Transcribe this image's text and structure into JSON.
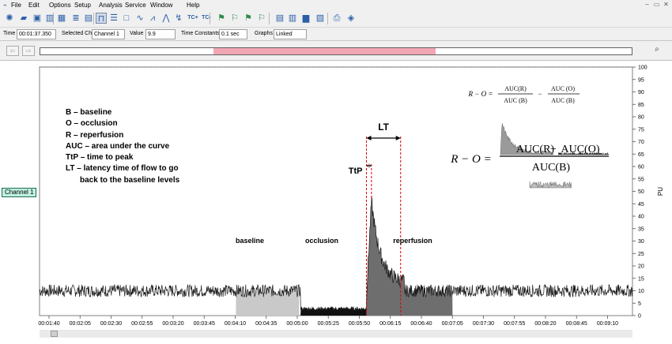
{
  "menu": {
    "items": [
      "File",
      "Edit",
      "Options",
      "Setup",
      "Analysis",
      "Service",
      "Window",
      "Help"
    ]
  },
  "window_controls": {
    "minimize": "–",
    "restore": "▭",
    "close": "✕"
  },
  "toolbar": {
    "icons": [
      "meter-icon",
      "folder-icon",
      "save-icon",
      "chart-icon",
      "grid-icon",
      "stack-view-icon",
      "single-view-icon",
      "mark-icon",
      "list-icon",
      "window-icon",
      "wave-icon",
      "waveform-icon",
      "peak-icon",
      "arrow-wave-icon",
      "tc-plus-icon",
      "tc-minus-icon",
      "flag-icon",
      "flag-left-icon",
      "flag-right-icon",
      "flag-edit-icon",
      "report-icon",
      "stats-icon",
      "bar-stats-icon",
      "graph-icon",
      "print-icon",
      "export-icon"
    ],
    "tc_plus_label": "TC+",
    "tc_minus_label": "TC-"
  },
  "info": {
    "time_label": "Time",
    "time_value": "00:01:37.350",
    "channel_label": "Selected Ch",
    "channel_value": "Channel 1",
    "value_label": "Value",
    "value_value": "9.9",
    "tc_label": "Time Constants",
    "tc_value": "0.1 sec",
    "graphs_label": "Graphs",
    "graphs_value": "Linked"
  },
  "navigation": {
    "back_icon": "back-arrow-icon",
    "forward_icon": "forward-arrow-icon",
    "zoom_icon": "binoculars-icon",
    "overview_selection": {
      "start": 0.293,
      "end": 0.668
    }
  },
  "channel_label": "Channel 1",
  "legend": [
    "B – baseline",
    "O – occlusion",
    "R – reperfusion",
    "AUC – area under the curve",
    "TtP – time to peak",
    "LT – latency time of flow to go",
    "back to the baseline levels"
  ],
  "annotations": {
    "lt": "LT",
    "ttp": "TtP",
    "baseline": "baseline",
    "occlusion": "occlusion",
    "reperfusion": "reperfusion"
  },
  "equation_small": {
    "lhs": "R − O =",
    "auc_r": "AUC(R)",
    "auc_b1": "AUC (B)",
    "minus": "−",
    "auc_o": "AUC (O)",
    "auc_b2": "AUC (B)"
  },
  "equation_large": {
    "lhs": "R − O =",
    "auc_r": "AUC(R)",
    "minus": "−",
    "auc_o": "AUC(O)",
    "auc_b": "AUC(B)"
  },
  "chart_data": {
    "type": "line",
    "ylabel": "PU",
    "ylim": [
      0,
      100
    ],
    "yticks": [
      0,
      5,
      10,
      15,
      20,
      25,
      30,
      35,
      40,
      45,
      50,
      55,
      60,
      65,
      70,
      75,
      80,
      85,
      90,
      95,
      100
    ],
    "xticks": [
      "00:01:40",
      "00:02:05",
      "00:02:30",
      "00:02:55",
      "00:03:20",
      "00:03:45",
      "00:04:10",
      "00:04:35",
      "00:05:00",
      "00:05:25",
      "00:05:50",
      "00:06:15",
      "00:06:40",
      "00:07:05",
      "00:07:30",
      "00:07:55",
      "00:08:20",
      "00:08:45",
      "00:09:10"
    ],
    "xlim_sec": [
      97,
      565
    ],
    "segments": {
      "baseline": [
        252,
        302
      ],
      "occlusion": [
        303,
        355
      ],
      "reperfusion": [
        355,
        423
      ]
    },
    "ttp_window_sec": [
      355,
      359
    ],
    "lt_window_sec": [
      355,
      382
    ],
    "peak": {
      "t": 362,
      "value": 46
    },
    "levels": {
      "baseline": 10,
      "occlusion": 2
    },
    "colors": {
      "signal": "#1a1a1a",
      "baseline_fill": "#c9c9c9",
      "occlusion_fill": "#111111",
      "reperfusion_fill": "#6e6e6e",
      "marker": "#e00000"
    }
  }
}
